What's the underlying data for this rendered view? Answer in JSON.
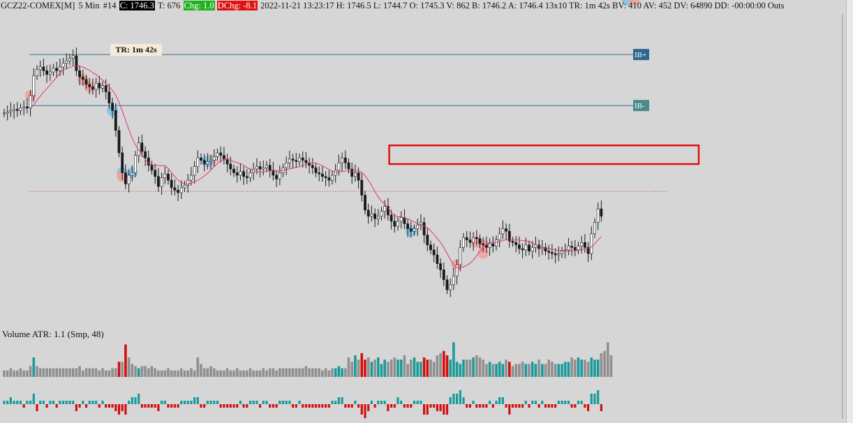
{
  "header": {
    "symbol": "GCZ22-COMEX[M]",
    "interval": "5 Min",
    "bar_index": "#14",
    "close": "C: 1746.3",
    "ticks": "T: 676",
    "chg": "Chg: 1.0",
    "dchg": "DChg: -8.1",
    "rest": "2022-11-21 13:23:17  H: 1746.5  L: 1744.7  O: 1745.3  V: 862  B: 1746.2  A: 1746.4  13x10  TR: 1m 42s  BV: 410  AV: 452  DV: 64890  DD: -00:00:00  Outs"
  },
  "tr_label": "TR: 1m 42s",
  "volume_label": "Volume  ATR: 1.1   (Smp, 48)",
  "colors": {
    "background": "#d6d6d6",
    "candle": "#1a1a1a",
    "ma": "#e0337f",
    "ib_line": "#3a6f8f",
    "ib_plus": "#2f6690",
    "ib_minus": "#4a8a8a",
    "zone": "#e01010",
    "vol_up": "#1a9b9b",
    "vol_down": "#d40f0f",
    "vol_neutral": "#8f8f8f",
    "circle_red": "#f0a09a",
    "circle_blue": "#7cc3e6"
  },
  "chart_data": {
    "type": "candlestick",
    "x_start_label": "",
    "series": [
      {
        "name": "price",
        "closes": [
          1754.6,
          1754.7,
          1754.8,
          1754.9,
          1754.8,
          1755.0,
          1755.1,
          1755.0,
          1756.0,
          1757.6,
          1758.1,
          1758.3,
          1758.0,
          1757.7,
          1757.9,
          1758.2,
          1758.0,
          1758.3,
          1758.6,
          1758.8,
          1759.0,
          1759.2,
          1758.0,
          1757.5,
          1757.3,
          1756.9,
          1756.7,
          1756.5,
          1757.0,
          1756.6,
          1756.8,
          1756.3,
          1755.4,
          1754.8,
          1753.2,
          1751.4,
          1749.8,
          1748.9,
          1749.6,
          1749.8,
          1751.2,
          1752.2,
          1751.5,
          1751.0,
          1750.4,
          1750.0,
          1749.5,
          1748.7,
          1749.4,
          1749.7,
          1749.2,
          1748.6,
          1748.4,
          1748.2,
          1748.6,
          1748.8,
          1749.2,
          1749.6,
          1750.3,
          1751.0,
          1750.8,
          1750.5,
          1750.7,
          1750.8,
          1751.1,
          1751.4,
          1751.2,
          1750.9,
          1750.5,
          1750.1,
          1749.8,
          1749.6,
          1749.9,
          1749.5,
          1749.4,
          1749.8,
          1750.1,
          1750.3,
          1750.1,
          1750.2,
          1750.4,
          1750.0,
          1749.6,
          1749.3,
          1749.8,
          1750.2,
          1750.6,
          1750.9,
          1750.8,
          1750.7,
          1751.0,
          1750.8,
          1750.6,
          1750.4,
          1750.2,
          1749.8,
          1749.7,
          1749.5,
          1749.4,
          1749.2,
          1749.6,
          1750.0,
          1750.6,
          1751.0,
          1750.6,
          1750.1,
          1749.5,
          1749.8,
          1749.2,
          1748.0,
          1746.8,
          1746.3,
          1746.5,
          1746.1,
          1746.3,
          1746.7,
          1747.1,
          1746.4,
          1745.9,
          1745.5,
          1745.9,
          1746.2,
          1745.7,
          1745.3,
          1745.1,
          1745.3,
          1745.6,
          1745.8,
          1744.8,
          1744.0,
          1743.6,
          1743.2,
          1742.5,
          1742.0,
          1741.2,
          1740.4,
          1740.8,
          1741.5,
          1742.4,
          1743.8,
          1744.6,
          1744.4,
          1744.2,
          1744.6,
          1744.5,
          1744.1,
          1744.0,
          1743.8,
          1744.1,
          1743.9,
          1744.4,
          1744.9,
          1745.3,
          1745.1,
          1744.3,
          1744.2,
          1744.0,
          1743.7,
          1743.6,
          1744.0,
          1743.5,
          1743.8,
          1744.0,
          1743.7,
          1743.8,
          1743.5,
          1743.4,
          1743.3,
          1743.2,
          1743.3,
          1743.5,
          1743.6,
          1743.9,
          1743.8,
          1743.6,
          1743.9,
          1744.2,
          1743.8,
          1743.3,
          1744.9,
          1745.8,
          1746.9,
          1746.3
        ]
      },
      {
        "name": "ma",
        "values": []
      }
    ],
    "y_range": [
      1739.0,
      1762.0
    ],
    "levels": [
      {
        "label": "IB+",
        "value": 1759.3
      },
      {
        "label": "IB-",
        "value": 1755.2
      }
    ],
    "dotted_level": 1748.3,
    "zone": {
      "top": 1752.0,
      "bottom": 1750.5,
      "start_bar": 118
    },
    "volume": [
      3,
      3,
      4,
      3,
      3,
      4,
      3,
      3,
      5,
      9,
      5,
      4,
      4,
      4,
      4,
      4,
      4,
      4,
      4,
      4,
      4,
      4,
      4,
      5,
      3,
      4,
      4,
      4,
      4,
      3,
      4,
      3,
      3,
      4,
      4,
      7,
      7,
      15,
      9,
      6,
      5,
      4,
      5,
      5,
      4,
      5,
      4,
      3,
      3,
      3,
      4,
      3,
      3,
      3,
      4,
      3,
      3,
      4,
      3,
      9,
      6,
      4,
      4,
      5,
      4,
      3,
      3,
      3,
      4,
      3,
      3,
      4,
      3,
      3,
      3,
      4,
      3,
      3,
      3,
      4,
      3,
      4,
      4,
      3,
      4,
      4,
      4,
      4,
      4,
      4,
      4,
      4,
      5,
      4,
      4,
      4,
      4,
      3,
      4,
      3,
      4,
      4,
      5,
      4,
      4,
      9,
      7,
      10,
      8,
      11,
      8,
      9,
      7,
      8,
      9,
      6,
      8,
      7,
      8,
      9,
      8,
      8,
      10,
      6,
      8,
      9,
      7,
      7,
      9,
      8,
      8,
      7,
      10,
      11,
      12,
      10,
      8,
      16,
      7,
      6,
      8,
      8,
      8,
      9,
      10,
      9,
      8,
      6,
      7,
      6,
      6,
      7,
      6,
      8,
      7,
      5,
      6,
      6,
      7,
      6,
      6,
      7,
      6,
      8,
      6,
      6,
      8,
      7,
      6,
      6,
      6,
      7,
      7,
      9,
      8,
      9,
      8,
      8,
      7,
      9,
      8,
      8,
      11,
      12,
      16,
      10
    ],
    "delta": [
      1,
      1,
      2,
      1,
      1,
      1,
      -1,
      1,
      1,
      3,
      -2,
      1,
      1,
      -1,
      1,
      1,
      -1,
      1,
      1,
      1,
      1,
      1,
      -2,
      -1,
      1,
      -1,
      1,
      1,
      1,
      -1,
      1,
      -1,
      -1,
      -1,
      -2,
      -3,
      -2,
      -3,
      1,
      2,
      2,
      3,
      -1,
      -1,
      -1,
      -1,
      -1,
      -2,
      1,
      1,
      -1,
      -1,
      -1,
      -1,
      1,
      1,
      1,
      1,
      2,
      2,
      -1,
      -1,
      1,
      1,
      1,
      1,
      -1,
      -1,
      -1,
      -1,
      -1,
      -1,
      1,
      -1,
      -1,
      1,
      1,
      1,
      -1,
      1,
      1,
      -1,
      -1,
      -1,
      1,
      1,
      1,
      1,
      -1,
      -1,
      1,
      -1,
      -1,
      -1,
      -1,
      -1,
      -1,
      -1,
      -1,
      -1,
      1,
      1,
      2,
      2,
      -1,
      -1,
      -1,
      1,
      -1,
      -3,
      -4,
      -2,
      1,
      -1,
      1,
      1,
      1,
      -2,
      -1,
      -1,
      2,
      1,
      -1,
      -1,
      -1,
      1,
      1,
      1,
      -3,
      -3,
      -1,
      -1,
      -2,
      -2,
      -3,
      -3,
      2,
      3,
      3,
      4,
      2,
      -1,
      -1,
      1,
      -1,
      -1,
      -1,
      -1,
      1,
      -1,
      1,
      2,
      2,
      -1,
      -3,
      -1,
      -1,
      -1,
      -1,
      1,
      -1,
      1,
      1,
      -1,
      1,
      -1,
      -1,
      -1,
      -1,
      1,
      1,
      1,
      1,
      -1,
      -1,
      1,
      1,
      -1,
      -2,
      3,
      3,
      4,
      -2
    ]
  }
}
